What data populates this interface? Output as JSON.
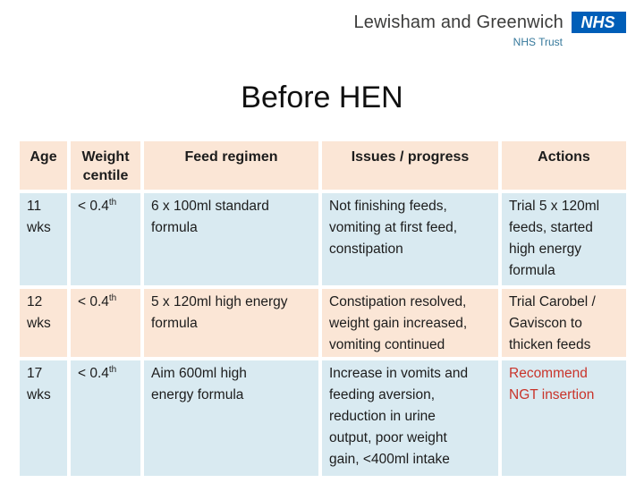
{
  "logo": {
    "org": "Lewisham and Greenwich",
    "nhs_acronym": "NHS",
    "sub": "NHS Trust"
  },
  "title": "Before HEN",
  "table": {
    "headers": [
      "Age",
      "Weight centile",
      "Feed regimen",
      "Issues / progress",
      "Actions"
    ],
    "rows": [
      {
        "age": "11 wks",
        "centile": "< 0.4",
        "centile_sup": "th",
        "regimen": "6 x 100ml standard\nformula",
        "issues": "Not finishing feeds,\nvomiting at first feed,\nconstipation",
        "actions": "Trial 5 x 120ml\nfeeds, started\nhigh energy\nformula"
      },
      {
        "age": "12 wks",
        "centile": "< 0.4",
        "centile_sup": "th",
        "regimen": "5 x 120ml high energy\nformula",
        "issues": "Constipation resolved,\nweight gain increased,\nvomiting continued",
        "actions": "Trial Carobel /\nGaviscon to\nthicken feeds"
      },
      {
        "age": "17 wks",
        "centile": "< 0.4",
        "centile_sup": "th",
        "regimen": "Aim 600ml high\nenergy formula",
        "issues": "Increase in vomits and\nfeeding aversion,\nreduction in urine\noutput, poor weight\ngain, <400ml intake",
        "actions": "Recommend\nNGT insertion"
      }
    ]
  },
  "colors": {
    "nhs_blue": "#005eb8",
    "nhs_trust_text": "#35789b",
    "band_peach": "#fbe6d6",
    "band_blue": "#d9eaf1",
    "alert_red": "#c9342b"
  }
}
